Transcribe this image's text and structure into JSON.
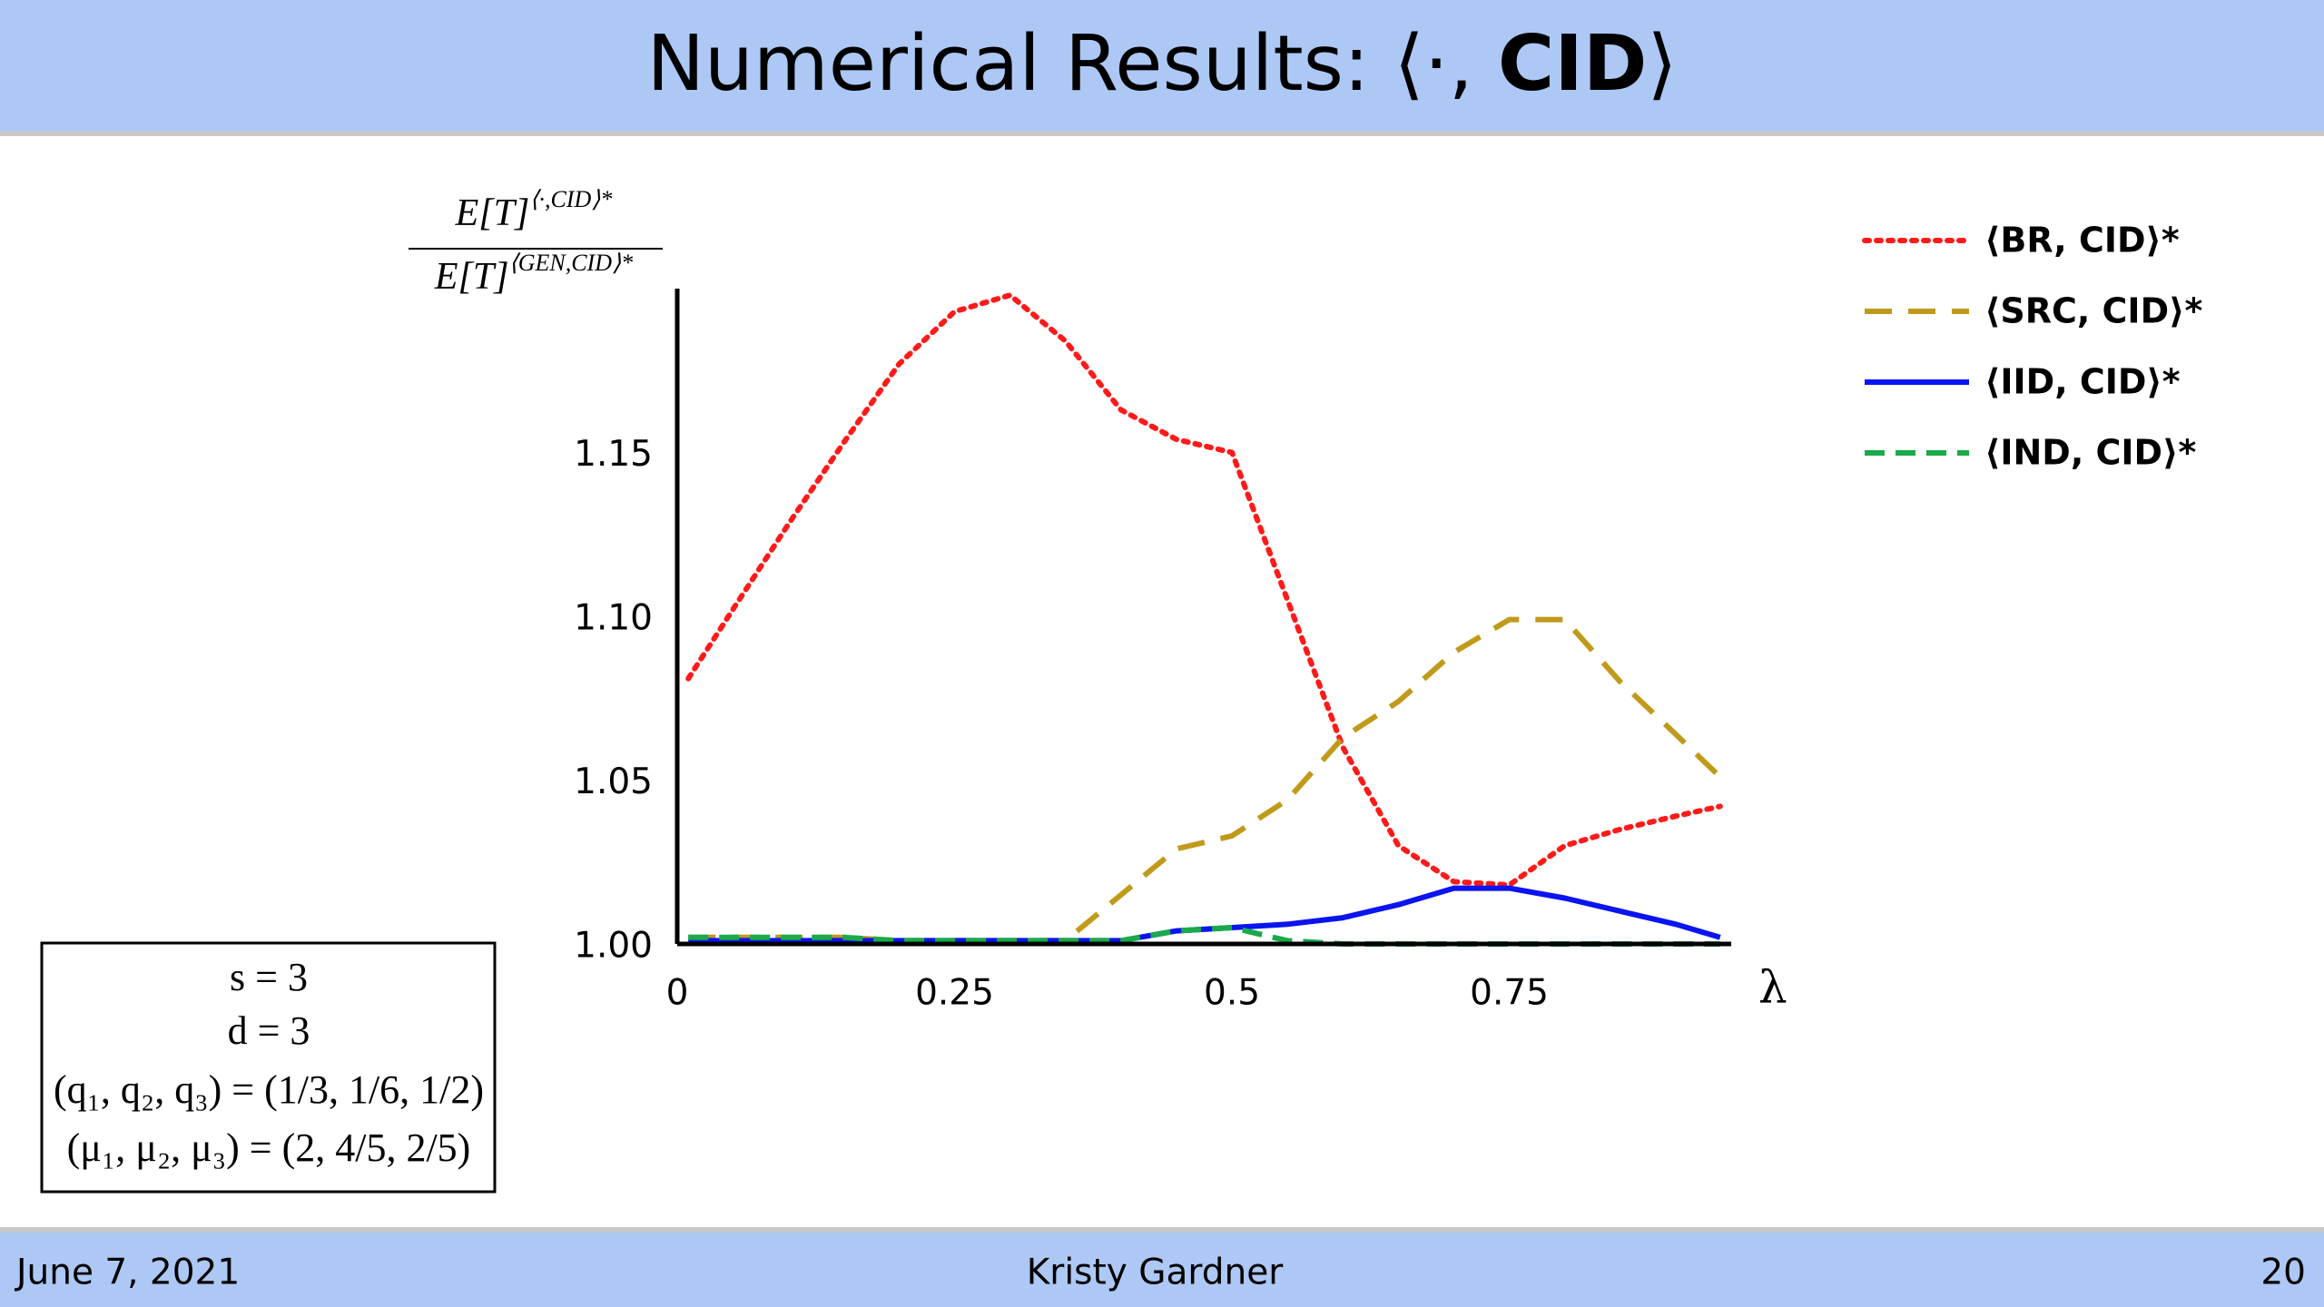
{
  "slide": {
    "title": [
      "Numerical Results: ⟨·, ",
      "CID",
      "⟩"
    ],
    "params": [
      "s = 3",
      "d = 3",
      "(q₁, q₂, q₃) = (1/3, 1/6, 1/2)",
      "(μ₁, μ₂, μ₃) = (2, 4/5, 2/5)"
    ],
    "date": "June 7, 2021",
    "author": "Kristy Gardner",
    "page": "20"
  },
  "chart_data": {
    "type": "line",
    "ylabel": {
      "numerator": "E[T]",
      "numerator_sup": "⟨·,CID⟩*",
      "denominator": "E[T]",
      "denominator_sup": "⟨GEN,CID⟩*"
    },
    "xlabel": "λ",
    "x": [
      0.01,
      0.05,
      0.1,
      0.15,
      0.2,
      0.25,
      0.3,
      0.35,
      0.4,
      0.45,
      0.5,
      0.55,
      0.6,
      0.65,
      0.7,
      0.75,
      0.8,
      0.85,
      0.9,
      0.94
    ],
    "xlim": [
      0,
      0.95
    ],
    "xticks": [
      0,
      0.25,
      0.5,
      0.75
    ],
    "ylim": [
      1.0,
      1.2
    ],
    "yticks": [
      {
        "value": 1.0,
        "label": "1.00"
      },
      {
        "value": 1.05,
        "label": "1.05"
      },
      {
        "value": 1.1,
        "label": "1.10"
      },
      {
        "value": 1.15,
        "label": "1.15"
      }
    ],
    "grid": false,
    "legend": "upper right",
    "series": [
      {
        "name": "⟨BR, CID⟩*",
        "color": "#ff1a1a",
        "style": "dotted",
        "values": [
          1.081,
          1.102,
          1.128,
          1.153,
          1.177,
          1.193,
          1.198,
          1.184,
          1.163,
          1.154,
          1.15,
          1.105,
          1.06,
          1.03,
          1.019,
          1.018,
          1.03,
          1.035,
          1.039,
          1.042
        ]
      },
      {
        "name": "⟨SRC, CID⟩*",
        "color": "#c09a1a",
        "style": "dashed",
        "values": [
          1.002,
          1.002,
          1.002,
          1.002,
          1.001,
          1.001,
          1.001,
          1.001,
          1.015,
          1.029,
          1.033,
          1.044,
          1.063,
          1.074,
          1.089,
          1.099,
          1.099,
          1.08,
          1.064,
          1.051
        ]
      },
      {
        "name": "⟨IID, CID⟩*",
        "color": "#0a14f0",
        "style": "solid",
        "values": [
          1.001,
          1.001,
          1.001,
          1.001,
          1.001,
          1.001,
          1.001,
          1.001,
          1.001,
          1.004,
          1.005,
          1.006,
          1.008,
          1.012,
          1.017,
          1.017,
          1.014,
          1.01,
          1.006,
          1.002
        ]
      },
      {
        "name": "⟨IND, CID⟩*",
        "color": "#1aaa4a",
        "style": "short-dashed",
        "values": [
          1.002,
          1.002,
          1.002,
          1.002,
          1.001,
          1.001,
          1.001,
          1.001,
          1.001,
          1.004,
          1.005,
          1.001,
          1.0,
          1.0,
          1.0,
          1.0,
          1.0,
          1.0,
          1.0,
          1.0
        ]
      }
    ]
  }
}
